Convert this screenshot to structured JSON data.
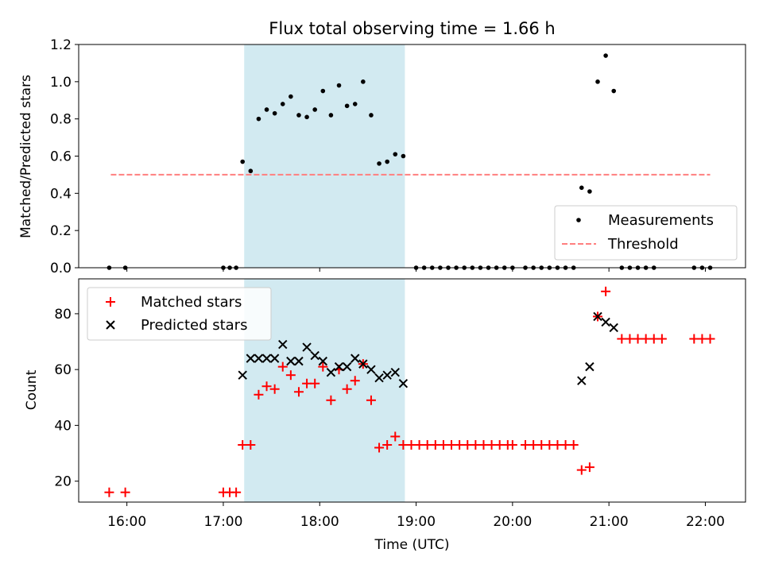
{
  "chart_data": [
    {
      "type": "scatter",
      "title": "Flux total observing time = 1.66 h",
      "xlabel": "",
      "ylabel": "Matched/Predicted stars",
      "xlim": [
        "15:30",
        "22:25"
      ],
      "ylim": [
        0,
        1.2
      ],
      "yticks": [
        "0.0",
        "0.2",
        "0.4",
        "0.6",
        "0.8",
        "1.0",
        "1.2"
      ],
      "shaded_region": [
        "17:13",
        "18:53"
      ],
      "threshold": {
        "name": "Threshold",
        "value": 0.5,
        "x": [
          "15:50",
          "22:03"
        ],
        "color": "#ff7f7f"
      },
      "legend_position": "lower right",
      "series": [
        {
          "name": "Measurements",
          "color": "#000000",
          "marker": "dot",
          "points": [
            [
              "15:49",
              0
            ],
            [
              "15:59",
              0
            ],
            [
              "17:00",
              0
            ],
            [
              "17:04",
              0
            ],
            [
              "17:08",
              0
            ],
            [
              "17:12",
              0.57
            ],
            [
              "17:17",
              0.52
            ],
            [
              "17:22",
              0.8
            ],
            [
              "17:27",
              0.85
            ],
            [
              "17:32",
              0.83
            ],
            [
              "17:37",
              0.88
            ],
            [
              "17:42",
              0.92
            ],
            [
              "17:47",
              0.82
            ],
            [
              "17:52",
              0.81
            ],
            [
              "17:57",
              0.85
            ],
            [
              "18:02",
              0.95
            ],
            [
              "18:07",
              0.82
            ],
            [
              "18:12",
              0.98
            ],
            [
              "18:17",
              0.87
            ],
            [
              "18:22",
              0.88
            ],
            [
              "18:27",
              1.0
            ],
            [
              "18:32",
              0.82
            ],
            [
              "18:37",
              0.56
            ],
            [
              "18:42",
              0.57
            ],
            [
              "18:47",
              0.61
            ],
            [
              "18:52",
              0.6
            ],
            [
              "19:00",
              0
            ],
            [
              "19:05",
              0
            ],
            [
              "19:10",
              0
            ],
            [
              "19:15",
              0
            ],
            [
              "19:20",
              0
            ],
            [
              "19:25",
              0
            ],
            [
              "19:30",
              0
            ],
            [
              "19:35",
              0
            ],
            [
              "19:40",
              0
            ],
            [
              "19:45",
              0
            ],
            [
              "19:50",
              0
            ],
            [
              "19:55",
              0
            ],
            [
              "20:00",
              0
            ],
            [
              "20:08",
              0
            ],
            [
              "20:13",
              0
            ],
            [
              "20:18",
              0
            ],
            [
              "20:23",
              0
            ],
            [
              "20:28",
              0
            ],
            [
              "20:33",
              0
            ],
            [
              "20:38",
              0
            ],
            [
              "20:43",
              0.43
            ],
            [
              "20:48",
              0.41
            ],
            [
              "20:53",
              1.0
            ],
            [
              "20:58",
              1.14
            ],
            [
              "21:03",
              0.95
            ],
            [
              "21:08",
              0
            ],
            [
              "21:13",
              0
            ],
            [
              "21:18",
              0
            ],
            [
              "21:23",
              0
            ],
            [
              "21:28",
              0
            ],
            [
              "21:53",
              0
            ],
            [
              "21:58",
              0
            ],
            [
              "22:03",
              0
            ]
          ]
        }
      ]
    },
    {
      "type": "scatter",
      "title": "",
      "xlabel": "Time (UTC)",
      "ylabel": "Count",
      "xlim": [
        "15:30",
        "22:25"
      ],
      "ylim": [
        12.5,
        92.5
      ],
      "yticks": [
        "20",
        "40",
        "60",
        "80"
      ],
      "xticks": [
        "16:00",
        "17:00",
        "18:00",
        "19:00",
        "20:00",
        "21:00",
        "22:00"
      ],
      "shaded_region": [
        "17:13",
        "18:53"
      ],
      "legend_position": "upper left",
      "series": [
        {
          "name": "Matched stars",
          "color": "#ff0000",
          "marker": "plus",
          "points": [
            [
              "15:49",
              16
            ],
            [
              "15:59",
              16
            ],
            [
              "17:00",
              16
            ],
            [
              "17:04",
              16
            ],
            [
              "17:08",
              16
            ],
            [
              "17:12",
              33
            ],
            [
              "17:17",
              33
            ],
            [
              "17:22",
              51
            ],
            [
              "17:27",
              54
            ],
            [
              "17:32",
              53
            ],
            [
              "17:37",
              61
            ],
            [
              "17:42",
              58
            ],
            [
              "17:47",
              52
            ],
            [
              "17:52",
              55
            ],
            [
              "17:57",
              55
            ],
            [
              "18:02",
              61
            ],
            [
              "18:07",
              49
            ],
            [
              "18:12",
              60
            ],
            [
              "18:17",
              53
            ],
            [
              "18:22",
              56
            ],
            [
              "18:27",
              62
            ],
            [
              "18:32",
              49
            ],
            [
              "18:37",
              32
            ],
            [
              "18:42",
              33
            ],
            [
              "18:47",
              36
            ],
            [
              "18:52",
              33
            ],
            [
              "18:57",
              33
            ],
            [
              "19:02",
              33
            ],
            [
              "19:07",
              33
            ],
            [
              "19:12",
              33
            ],
            [
              "19:17",
              33
            ],
            [
              "19:22",
              33
            ],
            [
              "19:27",
              33
            ],
            [
              "19:32",
              33
            ],
            [
              "19:37",
              33
            ],
            [
              "19:42",
              33
            ],
            [
              "19:47",
              33
            ],
            [
              "19:52",
              33
            ],
            [
              "19:57",
              33
            ],
            [
              "20:00",
              33
            ],
            [
              "20:08",
              33
            ],
            [
              "20:13",
              33
            ],
            [
              "20:18",
              33
            ],
            [
              "20:23",
              33
            ],
            [
              "20:28",
              33
            ],
            [
              "20:33",
              33
            ],
            [
              "20:38",
              33
            ],
            [
              "20:43",
              24
            ],
            [
              "20:48",
              25
            ],
            [
              "20:53",
              79
            ],
            [
              "20:58",
              88
            ],
            [
              "21:08",
              71
            ],
            [
              "21:13",
              71
            ],
            [
              "21:18",
              71
            ],
            [
              "21:23",
              71
            ],
            [
              "21:28",
              71
            ],
            [
              "21:33",
              71
            ],
            [
              "21:53",
              71
            ],
            [
              "21:58",
              71
            ],
            [
              "22:03",
              71
            ]
          ]
        },
        {
          "name": "Predicted stars",
          "color": "#000000",
          "marker": "x",
          "points": [
            [
              "17:12",
              58
            ],
            [
              "17:17",
              64
            ],
            [
              "17:22",
              64
            ],
            [
              "17:27",
              64
            ],
            [
              "17:32",
              64
            ],
            [
              "17:37",
              69
            ],
            [
              "17:42",
              63
            ],
            [
              "17:47",
              63
            ],
            [
              "17:52",
              68
            ],
            [
              "17:57",
              65
            ],
            [
              "18:02",
              63
            ],
            [
              "18:07",
              59
            ],
            [
              "18:12",
              61
            ],
            [
              "18:17",
              61
            ],
            [
              "18:22",
              64
            ],
            [
              "18:27",
              62
            ],
            [
              "18:32",
              60
            ],
            [
              "18:37",
              57
            ],
            [
              "18:42",
              58
            ],
            [
              "18:47",
              59
            ],
            [
              "18:52",
              55
            ],
            [
              "20:43",
              56
            ],
            [
              "20:48",
              61
            ],
            [
              "20:53",
              79
            ],
            [
              "20:58",
              77
            ],
            [
              "21:03",
              75
            ]
          ]
        }
      ]
    }
  ]
}
